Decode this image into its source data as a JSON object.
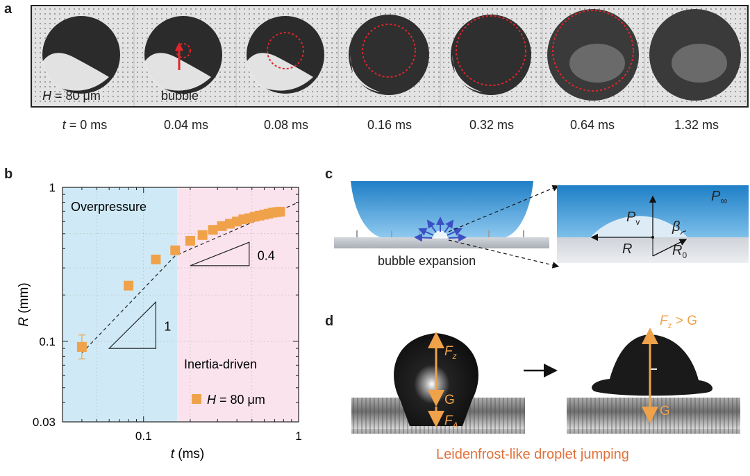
{
  "panel_a": {
    "label": "a",
    "frame_text": {
      "height": "H = 80 μm",
      "bubble": "bubble"
    },
    "times": [
      "t = 0 ms",
      "0.04 ms",
      "0.08 ms",
      "0.16 ms",
      "0.32 ms",
      "0.64 ms",
      "1.32 ms"
    ]
  },
  "panel_b": {
    "label": "b",
    "region_left": "Overpressure",
    "region_right": "Inertia-driven",
    "slope1": "1",
    "slope2": "0.4",
    "colors": {
      "marker": "#f0a24a",
      "overpressure": "#cfeaf6",
      "inertia": "#fbe3ee"
    }
  },
  "chart_data": {
    "type": "scatter",
    "xlabel": "t (ms)",
    "ylabel": "R (mm)",
    "xscale": "log",
    "yscale": "log",
    "xlim": [
      0.03,
      1
    ],
    "ylim": [
      0.03,
      1
    ],
    "xticks": [
      "0.1",
      "1"
    ],
    "yticks": [
      "0.03",
      "0.1",
      "1"
    ],
    "grid": true,
    "legend": "bottom-right",
    "series": [
      {
        "name": "H = 80 μm",
        "x": [
          0.04,
          0.08,
          0.12,
          0.16,
          0.2,
          0.24,
          0.28,
          0.32,
          0.36,
          0.4,
          0.44,
          0.48,
          0.52,
          0.56,
          0.6,
          0.64,
          0.68,
          0.72,
          0.76
        ],
        "y": [
          0.092,
          0.23,
          0.34,
          0.39,
          0.45,
          0.49,
          0.53,
          0.56,
          0.58,
          0.6,
          0.62,
          0.63,
          0.645,
          0.655,
          0.665,
          0.675,
          0.685,
          0.69,
          0.695
        ]
      }
    ],
    "fit_line_points": [
      [
        0.04,
        0.084
      ],
      [
        0.16,
        0.36
      ],
      [
        1,
        0.8
      ]
    ]
  },
  "panel_c": {
    "label": "c",
    "caption": "bubble expansion",
    "symbols": {
      "pv": "P",
      "pv_sub": "v",
      "pinf": "P",
      "pinf_sub": "∞",
      "beta": "β",
      "r": "R",
      "r0": "R",
      "r0_sub": "0"
    }
  },
  "panel_d": {
    "label": "d",
    "caption": "Leidenfrost-like droplet jumping",
    "left_forces": {
      "fz": "F",
      "fz_sub": "z",
      "g": "G",
      "fa": "F",
      "fa_sub": "A"
    },
    "right_forces": {
      "cond": "F",
      "cond_sub": "z",
      "cond_rest": " > G",
      "g": "G"
    }
  }
}
